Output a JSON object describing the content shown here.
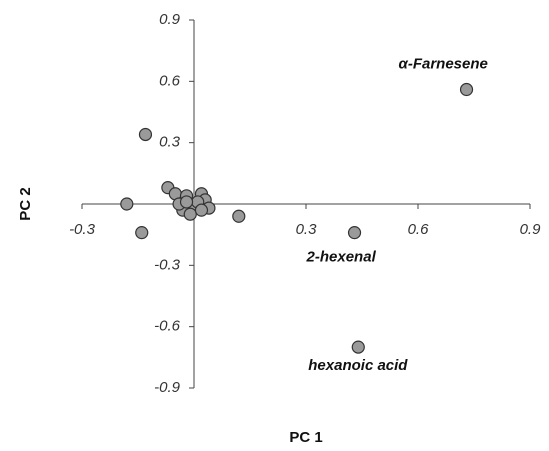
{
  "chart_data": {
    "type": "scatter",
    "x_label": "PC 1",
    "y_label": "PC 2",
    "xlim": [
      -0.3,
      0.9
    ],
    "xticks": [
      -0.3,
      0.3,
      0.6,
      0.9
    ],
    "ylim": [
      -0.9,
      0.9
    ],
    "yticks": [
      0.9,
      0.6,
      0.3,
      -0.3,
      -0.6,
      -0.9
    ],
    "color": "#9a9a9a",
    "x": [
      0.73,
      0.43,
      0.44,
      -0.13,
      -0.18,
      -0.14,
      0.12,
      -0.07,
      -0.05,
      -0.02,
      0.0,
      -0.03,
      0.02,
      0.03,
      0.04,
      -0.01,
      0.01,
      -0.04,
      0.02,
      -0.02
    ],
    "values": [
      0.56,
      -0.14,
      -0.7,
      0.34,
      0.0,
      -0.14,
      -0.06,
      0.08,
      0.05,
      0.04,
      0.0,
      -0.03,
      0.05,
      0.02,
      -0.02,
      -0.05,
      0.01,
      0.0,
      -0.03,
      0.01
    ],
    "point_labels": [
      "α-Farnesene",
      "2-hexenal",
      "hexanoic acid",
      null,
      null,
      null,
      null,
      null,
      null,
      null,
      null,
      null,
      null,
      null,
      null,
      null,
      null,
      null,
      null,
      null
    ]
  }
}
